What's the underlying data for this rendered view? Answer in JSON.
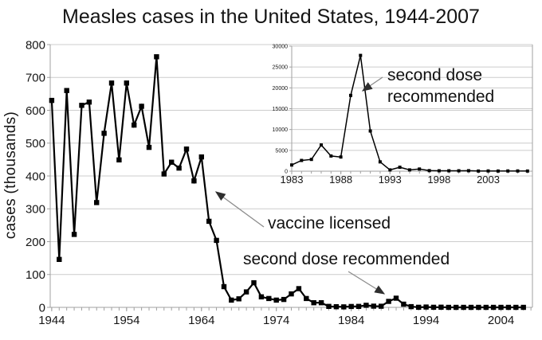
{
  "title": "Measles cases in the United States, 1944-2007",
  "y_axis_label": "cases (thousands)",
  "annotations": {
    "vaccine_licensed": "vaccine licensed",
    "second_dose_main": "second dose recommended",
    "second_dose_inset_line1": "second dose",
    "second_dose_inset_line2": "recommended"
  },
  "colors": {
    "series": "#000000",
    "grid": "#cccccc",
    "axis": "#a0a0a0",
    "arrow": "#8c8c8c",
    "arrowhead": "#2e2e2e",
    "text": "#141414",
    "background": "#ffffff"
  },
  "chart_data": [
    {
      "id": "main",
      "type": "line",
      "title": "Measles cases in the United States, 1944-2007",
      "xlabel": "",
      "ylabel": "cases (thousands)",
      "x": [
        1944,
        1945,
        1946,
        1947,
        1948,
        1949,
        1950,
        1951,
        1952,
        1953,
        1954,
        1955,
        1956,
        1957,
        1958,
        1959,
        1960,
        1961,
        1962,
        1963,
        1964,
        1965,
        1966,
        1967,
        1968,
        1969,
        1970,
        1971,
        1972,
        1973,
        1974,
        1975,
        1976,
        1977,
        1978,
        1979,
        1980,
        1981,
        1982,
        1983,
        1984,
        1985,
        1986,
        1987,
        1988,
        1989,
        1990,
        1991,
        1992,
        1993,
        1994,
        1995,
        1996,
        1997,
        1998,
        1999,
        2000,
        2001,
        2002,
        2003,
        2004,
        2005,
        2006,
        2007
      ],
      "values": [
        630,
        146,
        660,
        222,
        615,
        625,
        319,
        530,
        683,
        449,
        683,
        555,
        612,
        487,
        763,
        406,
        442,
        424,
        482,
        385,
        458,
        262,
        204,
        63,
        22,
        26,
        47,
        75,
        32,
        27,
        22,
        24,
        41,
        57,
        27,
        14,
        14,
        3,
        2,
        1.5,
        2.6,
        2.8,
        6.3,
        3.7,
        3.4,
        18.2,
        27.8,
        9.6,
        2.2,
        0.3,
        1,
        0.3,
        0.5,
        0.1,
        0.1,
        0.1,
        0.1,
        0.1,
        0,
        0.1,
        0,
        0.1,
        0.1,
        0
      ],
      "x_ticks": [
        1944,
        1954,
        1964,
        1974,
        1984,
        1994,
        2004
      ],
      "y_ticks": [
        0,
        100,
        200,
        300,
        400,
        500,
        600,
        700,
        800
      ],
      "xlim": [
        1943.8,
        2008.2
      ],
      "ylim": [
        0,
        800
      ],
      "grid": true,
      "legend": "none",
      "marker": "square"
    },
    {
      "id": "inset",
      "type": "line",
      "title": "",
      "xlabel": "",
      "ylabel": "",
      "x": [
        1983,
        1984,
        1985,
        1986,
        1987,
        1988,
        1989,
        1990,
        1991,
        1992,
        1993,
        1994,
        1995,
        1996,
        1997,
        1998,
        1999,
        2000,
        2001,
        2002,
        2003,
        2004,
        2005,
        2006,
        2007
      ],
      "values": [
        1497,
        2587,
        2822,
        6282,
        3655,
        3396,
        18193,
        27786,
        9643,
        2237,
        312,
        963,
        309,
        508,
        138,
        100,
        100,
        86,
        116,
        44,
        56,
        37,
        66,
        55,
        43
      ],
      "x_ticks": [
        1983,
        1988,
        1993,
        1998,
        2003
      ],
      "y_ticks": [
        0,
        5000,
        10000,
        15000,
        20000,
        25000,
        30000
      ],
      "xlim": [
        1983,
        2007.5
      ],
      "ylim": [
        0,
        30000
      ],
      "grid": true,
      "legend": "none",
      "marker": "square"
    }
  ]
}
